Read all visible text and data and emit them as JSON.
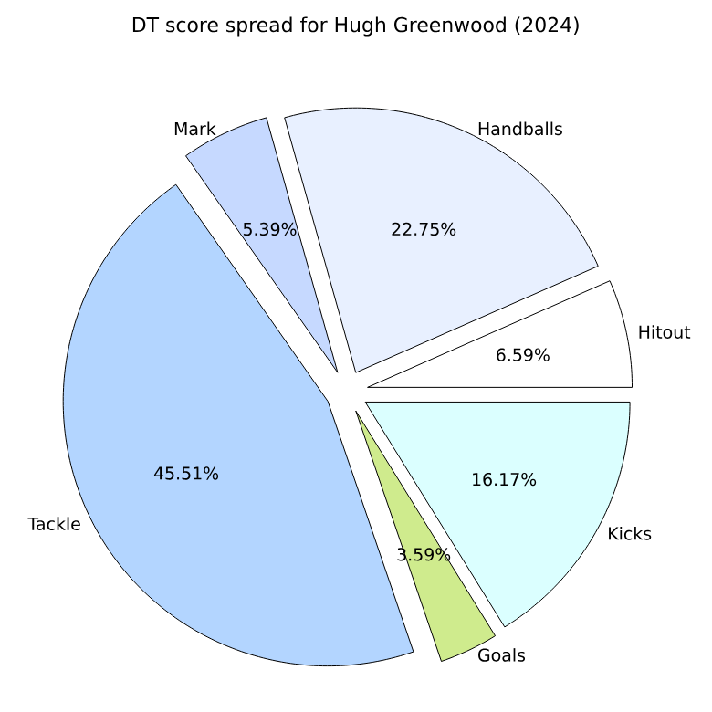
{
  "chart_data": {
    "type": "pie",
    "title": "DT score spread for Hugh Greenwood (2024)",
    "categories": [
      "Hitout",
      "Handballs",
      "Mark",
      "Tackle",
      "Goals",
      "Kicks"
    ],
    "values": [
      6.59,
      22.75,
      5.39,
      45.51,
      3.59,
      16.17
    ],
    "value_labels": [
      "6.59%",
      "22.75%",
      "5.39%",
      "45.51%",
      "3.59%",
      "16.17%"
    ],
    "colors": [
      "#ffffff",
      "#e8f0ff",
      "#c6d9ff",
      "#b3d5ff",
      "#cfeb8d",
      "#dbffff"
    ]
  }
}
